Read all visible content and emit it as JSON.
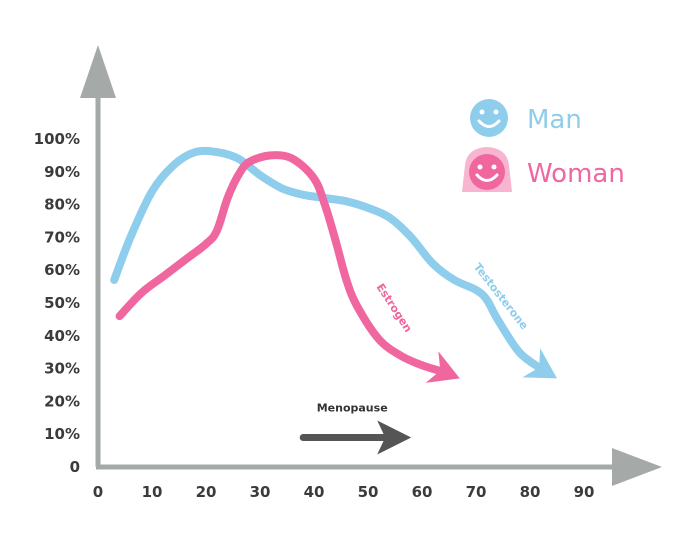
{
  "chart_data": {
    "type": "line",
    "x_ticks": [
      0,
      10,
      20,
      30,
      40,
      50,
      60,
      70,
      80,
      90
    ],
    "y_ticks": [
      "0",
      "10%",
      "20%",
      "30%",
      "40%",
      "50%",
      "60%",
      "70%",
      "80%",
      "90%",
      "100%"
    ],
    "xlim": [
      0,
      90
    ],
    "ylim": [
      0,
      100
    ],
    "grid": false,
    "legend_position": "top-right",
    "series": [
      {
        "name": "Man",
        "color": "#8fcdec",
        "annotation": "Testosterone",
        "x": [
          3,
          6,
          10,
          14,
          18,
          22,
          26,
          30,
          34,
          38,
          42,
          46,
          50,
          54,
          58,
          62,
          66,
          70,
          72,
          74,
          78,
          82,
          85
        ],
        "y": [
          57,
          70,
          84,
          92,
          96,
          96,
          94,
          89,
          85,
          83,
          82,
          81,
          79,
          76,
          70,
          62,
          57,
          54,
          51,
          45,
          35,
          30,
          27
        ]
      },
      {
        "name": "Woman",
        "color": "#f0679f",
        "annotation": "Estrogen",
        "x": [
          4,
          8,
          12,
          16,
          20,
          22,
          24,
          26,
          28,
          32,
          36,
          40,
          42,
          44,
          46,
          48,
          52,
          56,
          60,
          64,
          67
        ],
        "y": [
          46,
          53,
          58,
          63,
          68,
          72,
          82,
          89,
          93,
          95,
          94,
          88,
          80,
          69,
          57,
          49,
          39,
          34,
          31,
          29,
          27
        ]
      }
    ],
    "annotation_arrow": {
      "label": "Menopause",
      "x_start": 38,
      "x_end": 58,
      "y": 9
    }
  },
  "legend": [
    {
      "label": "Man",
      "color": "#8fcdec",
      "icon": "smiley-man-icon"
    },
    {
      "label": "Woman",
      "color": "#f0679f",
      "icon": "smiley-woman-icon"
    }
  ],
  "colors": {
    "axis": "#a5aaa8",
    "tick_text": "#3b3b3b",
    "menopause_arrow": "#555555"
  }
}
